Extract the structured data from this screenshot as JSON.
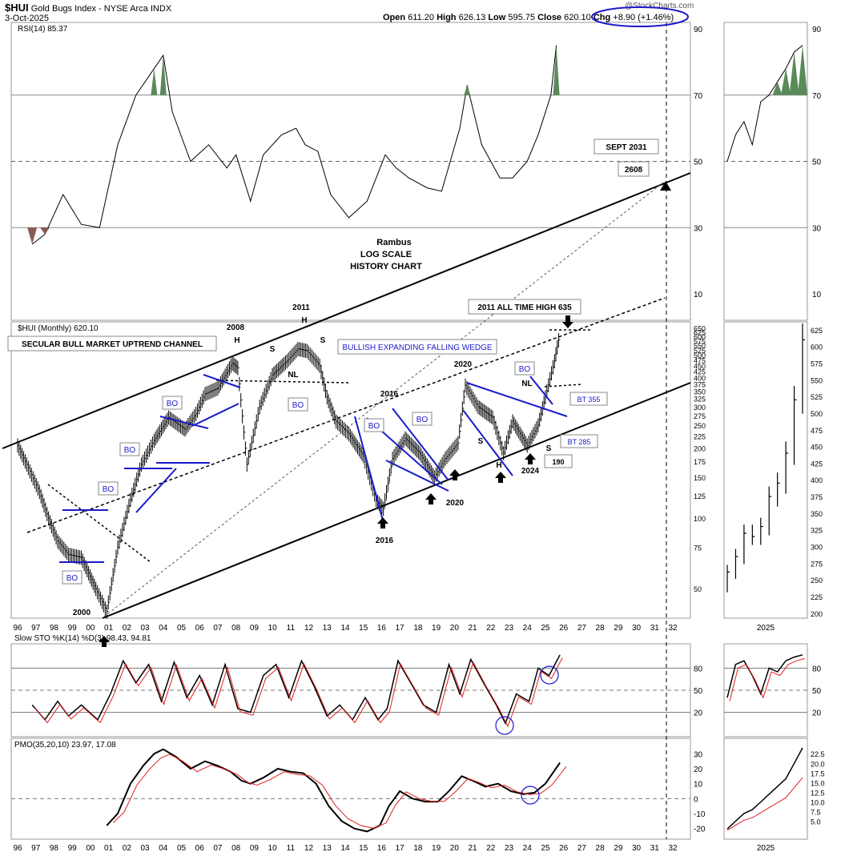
{
  "header": {
    "symbol": "$HUI",
    "name": "Gold Bugs Index - NYSE Arca INDX",
    "date": "3-Oct-2025",
    "open_label": "Open",
    "open": "611.20",
    "high_label": "High",
    "high": "626.13",
    "low_label": "Low",
    "low": "595.75",
    "close_label": "Close",
    "close": "620.10",
    "chg_label": "Chg",
    "chg": "+8.90 (+1.46%)",
    "logo": "@StockCharts.com"
  },
  "colors": {
    "rsi_overbought_fill": "#5a8a5a",
    "rsi_oversold_fill": "#8a5a55",
    "signal_line": "#e02020",
    "annotation_blue": "#1a1acc",
    "dashed_ref": "#555555"
  },
  "chart_data": [
    {
      "type": "line",
      "panel": "rsi",
      "title": "RSI(14) 85.37",
      "ylim": [
        0,
        100
      ],
      "y_ticks": [
        "90",
        "70",
        "50",
        "30",
        "10"
      ],
      "reference_lines": [
        70,
        50,
        30
      ],
      "x": [
        1996.8,
        1997.5,
        1998.5,
        1999.5,
        2000.5,
        2001.5,
        2002.5,
        2003.5,
        2004.0,
        2004.5,
        2005.5,
        2006.5,
        2007.5,
        2008.0,
        2008.8,
        2009.5,
        2010.5,
        2011.3,
        2011.8,
        2012.5,
        2013.2,
        2014.2,
        2015.2,
        2016.2,
        2016.8,
        2017.5,
        2018.5,
        2019.3,
        2020.3,
        2020.7,
        2021.5,
        2022.5,
        2023.2,
        2024.0,
        2024.6,
        2025.3,
        2025.6
      ],
      "values": [
        25,
        28,
        40,
        31,
        30,
        55,
        70,
        78,
        82,
        65,
        50,
        55,
        48,
        52,
        38,
        52,
        58,
        60,
        55,
        53,
        40,
        33,
        38,
        52,
        48,
        45,
        42,
        41,
        60,
        73,
        55,
        45,
        45,
        50,
        58,
        70,
        85
      ]
    },
    {
      "type": "line",
      "panel": "rsi-2025",
      "x": [
        "2025-01",
        "2025-02",
        "2025-03",
        "2025-04",
        "2025-05",
        "2025-06",
        "2025-07",
        "2025-08",
        "2025-09",
        "2025-10"
      ],
      "values": [
        50,
        58,
        62,
        55,
        68,
        70,
        74,
        78,
        83,
        85
      ]
    },
    {
      "type": "line",
      "panel": "price",
      "title": "$HUI (Monthly) 620.10",
      "scale": "log",
      "ylim": [
        38,
        680
      ],
      "y_ticks": [
        "650",
        "625",
        "600",
        "575",
        "550",
        "525",
        "500",
        "475",
        "450",
        "425",
        "400",
        "375",
        "350",
        "325",
        "300",
        "275",
        "250",
        "225",
        "200",
        "175",
        "150",
        "125",
        "100",
        "75",
        "50"
      ],
      "x_ticks": [
        "96",
        "97",
        "98",
        "99",
        "00",
        "01",
        "02",
        "03",
        "04",
        "05",
        "06",
        "07",
        "08",
        "09",
        "10",
        "11",
        "12",
        "13",
        "14",
        "15",
        "16",
        "17",
        "18",
        "19",
        "20",
        "21",
        "22",
        "23",
        "24",
        "25",
        "26",
        "27",
        "28",
        "29",
        "30",
        "31",
        "32"
      ],
      "x": [
        1996.0,
        1996.5,
        1997.2,
        1997.7,
        1998.2,
        1998.8,
        1999.5,
        2000.3,
        2000.9,
        2001.5,
        2002.2,
        2002.8,
        2003.5,
        2004.3,
        2005.2,
        2005.8,
        2006.3,
        2007.0,
        2007.8,
        2008.1,
        2008.6,
        2009.3,
        2010.0,
        2010.8,
        2011.4,
        2011.9,
        2012.6,
        2013.0,
        2013.5,
        2014.2,
        2015.0,
        2015.7,
        2016.1,
        2016.6,
        2017.3,
        2018.1,
        2018.9,
        2019.5,
        2020.2,
        2020.6,
        2021.3,
        2022.1,
        2022.7,
        2023.2,
        2024.0,
        2024.6,
        2025.0,
        2025.5,
        2025.8
      ],
      "values": [
        205,
        170,
        130,
        100,
        80,
        70,
        68,
        50,
        40,
        75,
        120,
        170,
        215,
        270,
        240,
        280,
        340,
        360,
        460,
        440,
        170,
        300,
        410,
        470,
        530,
        520,
        450,
        330,
        260,
        230,
        185,
        120,
        110,
        180,
        220,
        190,
        150,
        180,
        210,
        370,
        300,
        270,
        190,
        260,
        205,
        250,
        330,
        470,
        620
      ],
      "annotations": [
        "SECULAR BULL MARKET UPTREND CHANNEL",
        "2011 ALL TIME HIGH 635",
        "BULLISH EXPANDING FALLING WEDGE",
        "Rambus",
        "LOG SCALE",
        "HISTORY CHART",
        "SEPT 2031",
        "2608",
        "BO",
        "BO",
        "BO",
        "BO",
        "BO",
        "BO",
        "BO",
        "BO",
        "BO",
        "BT 355",
        "BT 285",
        "190",
        "2008",
        "2011",
        "2016",
        "2016",
        "2020",
        "2020",
        "2024",
        "2000",
        "H",
        "H",
        "S",
        "S",
        "NL",
        "S",
        "H",
        "NL",
        "S"
      ]
    },
    {
      "type": "line",
      "panel": "price-2025",
      "y_ticks": [
        "625",
        "600",
        "575",
        "550",
        "525",
        "500",
        "475",
        "450",
        "425",
        "400",
        "375",
        "350",
        "325",
        "300",
        "275",
        "250",
        "225",
        "200"
      ],
      "x_label": "2025",
      "x": [
        "2025-01",
        "2025-02",
        "2025-03",
        "2025-04",
        "2025-05",
        "2025-06",
        "2025-07",
        "2025-08",
        "2025-09",
        "2025-10"
      ],
      "values": [
        262,
        285,
        320,
        315,
        330,
        375,
        395,
        440,
        520,
        610
      ]
    },
    {
      "type": "line",
      "panel": "stochastic",
      "title": "Slow STO %K(14) %D(3) 98.43, 94.81",
      "ylim": [
        0,
        100
      ],
      "y_ticks": [
        "80",
        "50",
        "20"
      ],
      "reference_lines": [
        80,
        50,
        20
      ],
      "x": [
        1996.8,
        1997.5,
        1998.2,
        1998.8,
        1999.5,
        2000.4,
        2001.1,
        2001.8,
        2002.5,
        2003.2,
        2003.9,
        2004.6,
        2005.3,
        2006.0,
        2006.7,
        2007.4,
        2008.1,
        2008.8,
        2009.5,
        2010.2,
        2010.9,
        2011.6,
        2012.3,
        2013.0,
        2013.7,
        2014.4,
        2015.1,
        2015.8,
        2016.3,
        2016.9,
        2017.6,
        2018.3,
        2019.0,
        2019.7,
        2020.3,
        2020.9,
        2021.6,
        2022.3,
        2022.8,
        2023.4,
        2024.1,
        2024.6,
        2025.2,
        2025.8
      ],
      "values": [
        30,
        10,
        35,
        15,
        30,
        10,
        45,
        90,
        60,
        85,
        35,
        88,
        40,
        70,
        30,
        85,
        25,
        20,
        70,
        85,
        40,
        90,
        55,
        15,
        30,
        10,
        40,
        10,
        25,
        90,
        60,
        30,
        20,
        85,
        45,
        92,
        60,
        30,
        5,
        45,
        35,
        80,
        70,
        98
      ]
    },
    {
      "type": "line",
      "panel": "stochastic-2025",
      "x": [
        "2025-01",
        "2025-02",
        "2025-03",
        "2025-04",
        "2025-05",
        "2025-06",
        "2025-07",
        "2025-08",
        "2025-09",
        "2025-10"
      ],
      "values": [
        40,
        85,
        90,
        70,
        45,
        80,
        75,
        90,
        95,
        98
      ]
    },
    {
      "type": "line",
      "panel": "pmo",
      "title": "PMO(35,20,10) 23.97, 17.08",
      "ylim": [
        -25,
        35
      ],
      "y_ticks": [
        "30",
        "20",
        "10",
        "0",
        "-10",
        "-20"
      ],
      "reference_lines": [
        0
      ],
      "x": [
        2000.9,
        2001.5,
        2002.2,
        2002.9,
        2003.5,
        2004.0,
        2004.7,
        2005.5,
        2006.3,
        2007.0,
        2007.7,
        2008.3,
        2008.8,
        2009.5,
        2010.3,
        2011.0,
        2011.7,
        2012.4,
        2013.1,
        2013.8,
        2014.5,
        2015.2,
        2015.9,
        2016.4,
        2017.0,
        2017.7,
        2018.4,
        2019.1,
        2019.7,
        2020.4,
        2021.0,
        2021.7,
        2022.4,
        2023.1,
        2023.8,
        2024.4,
        2025.0,
        2025.8
      ],
      "values": [
        -18,
        -10,
        10,
        22,
        30,
        33,
        28,
        20,
        25,
        22,
        18,
        12,
        10,
        14,
        20,
        18,
        17,
        10,
        -5,
        -15,
        -20,
        -22,
        -18,
        -5,
        5,
        0,
        -2,
        -2,
        5,
        15,
        12,
        8,
        10,
        5,
        3,
        4,
        10,
        24
      ]
    },
    {
      "type": "line",
      "panel": "pmo-2025",
      "y_ticks": [
        "22.5",
        "20.0",
        "17.5",
        "15.0",
        "12.5",
        "10.0",
        "7.5",
        "5.0"
      ],
      "x_label": "2025",
      "x": [
        "2025-01",
        "2025-02",
        "2025-03",
        "2025-04",
        "2025-05",
        "2025-06",
        "2025-07",
        "2025-08",
        "2025-09",
        "2025-10"
      ],
      "values": [
        3,
        5,
        7,
        8,
        10,
        12,
        14,
        16,
        20,
        24
      ]
    }
  ]
}
